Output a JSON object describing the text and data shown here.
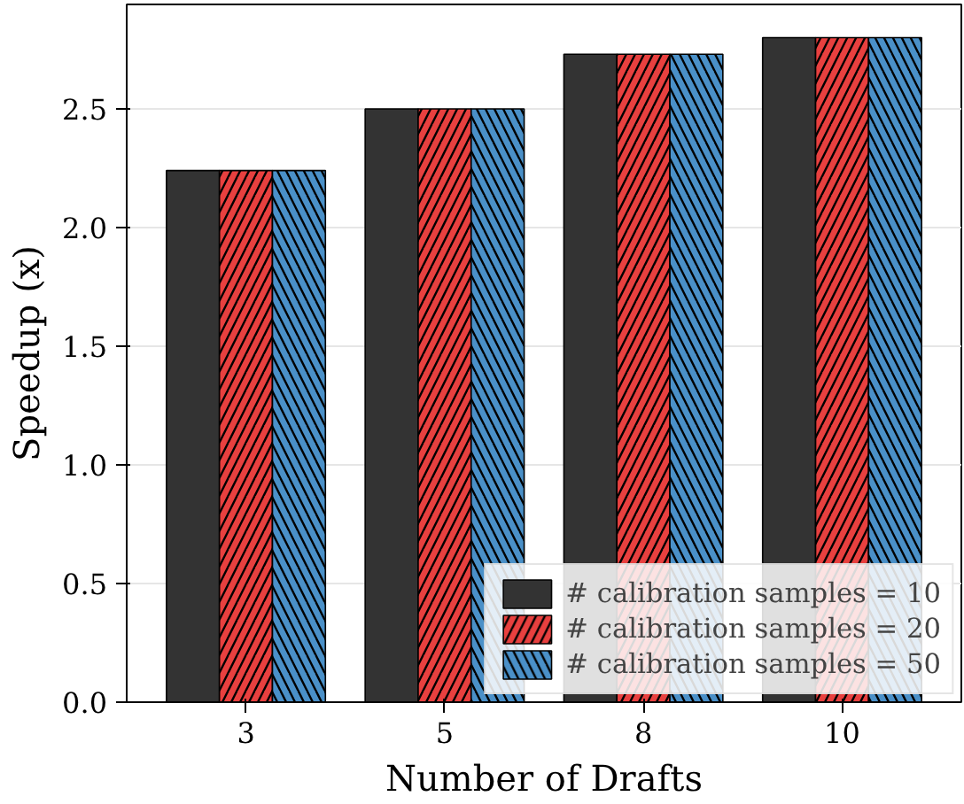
{
  "chart_data": {
    "type": "bar",
    "xlabel": "Number of Drafts",
    "ylabel": "Speedup (x)",
    "categories": [
      "3",
      "5",
      "8",
      "10"
    ],
    "series": [
      {
        "name": "# calibration samples = 10",
        "color": "#333333",
        "values": [
          2.24,
          2.5,
          2.73,
          2.8
        ]
      },
      {
        "name": "# calibration samples = 20",
        "color": "#e8403f",
        "values": [
          2.24,
          2.5,
          2.73,
          2.8
        ]
      },
      {
        "name": "# calibration samples = 50",
        "color": "#4a90c8",
        "values": [
          2.24,
          2.5,
          2.73,
          2.8
        ]
      }
    ],
    "ylim": [
      0,
      2.94
    ],
    "yticks": [
      {
        "value": 0,
        "label": "0.0"
      },
      {
        "value": 0.5,
        "label": "0.5"
      },
      {
        "value": 1,
        "label": "1.0"
      },
      {
        "value": 1.5,
        "label": "1.5"
      },
      {
        "value": 2,
        "label": "2.0"
      },
      {
        "value": 2.5,
        "label": "2.5"
      }
    ],
    "grid": "y",
    "legend": "bottom right"
  }
}
